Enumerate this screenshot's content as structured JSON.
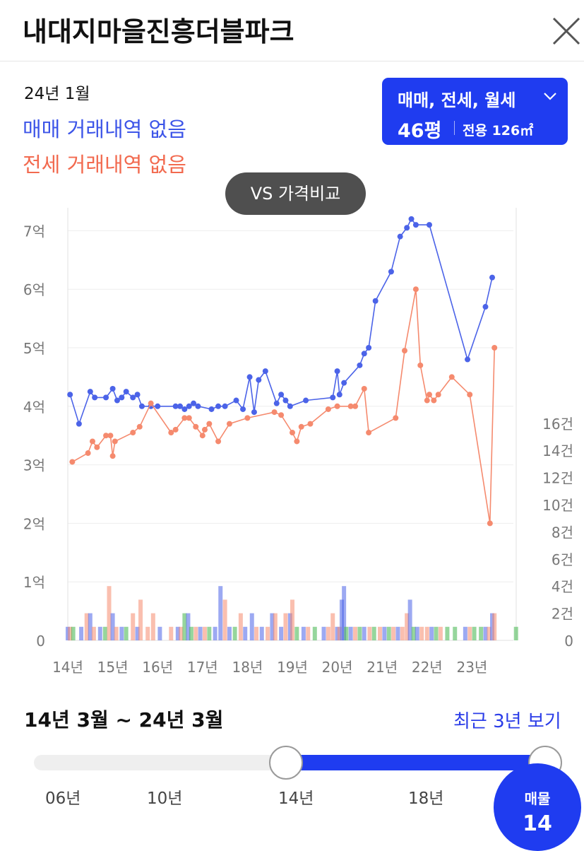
{
  "header": {
    "title": "내대지마을진흥더블파크"
  },
  "summary": {
    "period": "24년 1월",
    "sale_status": "매매 거래내역 없음",
    "rent_status": "전세 거래내역 없음"
  },
  "type_selector": {
    "types": "매매, 전세, 월세",
    "pyeong": "46평",
    "area": "전용 126㎡"
  },
  "vs_button": {
    "label": "VS 가격비교"
  },
  "colors": {
    "sale": "#4b63e8",
    "jeonse": "#f58a6e",
    "monthly": "#3fb54a",
    "accent": "#1f3cf0"
  },
  "chart_data": {
    "type": "line",
    "x_unit": "year",
    "xlim": [
      14.0,
      24.0
    ],
    "y_left": {
      "label": "억",
      "range": [
        0,
        7.5
      ],
      "ticks": [
        "0",
        "1억",
        "2억",
        "3억",
        "4억",
        "5억",
        "6억",
        "7억"
      ]
    },
    "y_right": {
      "label": "건",
      "range": [
        0,
        16
      ],
      "ticks": [
        "0",
        "2건",
        "4건",
        "6건",
        "8건",
        "10건",
        "12건",
        "14건",
        "16건"
      ]
    },
    "x_ticks": [
      "14년",
      "15년",
      "16년",
      "17년",
      "18년",
      "19년",
      "20년",
      "21년",
      "22년",
      "23년"
    ],
    "series": [
      {
        "key": "sale",
        "points": [
          [
            14.05,
            4.2
          ],
          [
            14.25,
            3.7
          ],
          [
            14.5,
            4.25
          ],
          [
            14.6,
            4.15
          ],
          [
            14.85,
            4.15
          ],
          [
            15.0,
            4.3
          ],
          [
            15.1,
            4.1
          ],
          [
            15.2,
            4.15
          ],
          [
            15.3,
            4.25
          ],
          [
            15.45,
            4.15
          ],
          [
            15.55,
            4.2
          ],
          [
            15.65,
            4.0
          ],
          [
            15.85,
            4.0
          ],
          [
            16.0,
            4.0
          ],
          [
            16.4,
            4.0
          ],
          [
            16.5,
            4.0
          ],
          [
            16.6,
            3.95
          ],
          [
            16.7,
            4.0
          ],
          [
            16.8,
            4.05
          ],
          [
            16.9,
            4.0
          ],
          [
            17.2,
            3.95
          ],
          [
            17.35,
            4.0
          ],
          [
            17.5,
            4.0
          ],
          [
            17.75,
            4.1
          ],
          [
            17.9,
            3.95
          ],
          [
            18.05,
            4.5
          ],
          [
            18.15,
            3.9
          ],
          [
            18.25,
            4.45
          ],
          [
            18.4,
            4.6
          ],
          [
            18.65,
            4.05
          ],
          [
            18.75,
            4.2
          ],
          [
            18.85,
            4.1
          ],
          [
            18.95,
            4.0
          ],
          [
            19.3,
            4.1
          ],
          [
            19.9,
            4.15
          ],
          [
            20.0,
            4.6
          ],
          [
            20.05,
            4.2
          ],
          [
            20.15,
            4.4
          ],
          [
            20.5,
            4.7
          ],
          [
            20.6,
            4.9
          ],
          [
            20.7,
            5.0
          ],
          [
            20.85,
            5.8
          ],
          [
            21.2,
            6.3
          ],
          [
            21.4,
            6.9
          ],
          [
            21.55,
            7.05
          ],
          [
            21.65,
            7.2
          ],
          [
            21.75,
            7.1
          ],
          [
            22.05,
            7.1
          ],
          [
            22.9,
            4.8
          ],
          [
            23.3,
            5.7
          ],
          [
            23.45,
            6.2
          ]
        ]
      },
      {
        "key": "jeonse",
        "points": [
          [
            14.1,
            3.05
          ],
          [
            14.45,
            3.2
          ],
          [
            14.55,
            3.4
          ],
          [
            14.65,
            3.3
          ],
          [
            14.85,
            3.5
          ],
          [
            14.95,
            3.5
          ],
          [
            15.0,
            3.15
          ],
          [
            15.05,
            3.4
          ],
          [
            15.45,
            3.55
          ],
          [
            15.6,
            3.65
          ],
          [
            15.85,
            4.05
          ],
          [
            16.3,
            3.55
          ],
          [
            16.4,
            3.6
          ],
          [
            16.6,
            3.8
          ],
          [
            16.7,
            3.8
          ],
          [
            16.85,
            3.65
          ],
          [
            17.0,
            3.5
          ],
          [
            17.05,
            3.6
          ],
          [
            17.15,
            3.7
          ],
          [
            17.35,
            3.4
          ],
          [
            17.6,
            3.7
          ],
          [
            18.0,
            3.8
          ],
          [
            18.6,
            3.9
          ],
          [
            18.75,
            3.85
          ],
          [
            19.0,
            3.55
          ],
          [
            19.1,
            3.4
          ],
          [
            19.2,
            3.65
          ],
          [
            19.4,
            3.7
          ],
          [
            19.8,
            3.95
          ],
          [
            20.0,
            4.0
          ],
          [
            20.3,
            4.0
          ],
          [
            20.4,
            4.0
          ],
          [
            20.6,
            4.3
          ],
          [
            20.7,
            3.55
          ],
          [
            21.3,
            3.8
          ],
          [
            21.5,
            4.95
          ],
          [
            21.75,
            6.0
          ],
          [
            21.85,
            4.7
          ],
          [
            22.0,
            4.1
          ],
          [
            22.05,
            4.2
          ],
          [
            22.15,
            4.1
          ],
          [
            22.25,
            4.2
          ],
          [
            22.55,
            4.5
          ],
          [
            22.95,
            4.2
          ],
          [
            23.4,
            2.0
          ],
          [
            23.5,
            5.0
          ]
        ]
      }
    ],
    "volume_unit": "건",
    "volume": [
      {
        "x": 14.0,
        "key": "sale",
        "v": 1
      },
      {
        "x": 14.05,
        "key": "jeonse",
        "v": 1
      },
      {
        "x": 14.12,
        "key": "monthly",
        "v": 1
      },
      {
        "x": 14.3,
        "key": "sale",
        "v": 1
      },
      {
        "x": 14.42,
        "key": "jeonse",
        "v": 2
      },
      {
        "x": 14.5,
        "key": "sale",
        "v": 2
      },
      {
        "x": 14.58,
        "key": "jeonse",
        "v": 1
      },
      {
        "x": 14.72,
        "key": "sale",
        "v": 1
      },
      {
        "x": 14.83,
        "key": "monthly",
        "v": 1
      },
      {
        "x": 14.92,
        "key": "jeonse",
        "v": 4
      },
      {
        "x": 15.0,
        "key": "sale",
        "v": 2
      },
      {
        "x": 15.08,
        "key": "jeonse",
        "v": 1
      },
      {
        "x": 15.2,
        "key": "sale",
        "v": 1
      },
      {
        "x": 15.3,
        "key": "monthly",
        "v": 1
      },
      {
        "x": 15.45,
        "key": "jeonse",
        "v": 2
      },
      {
        "x": 15.55,
        "key": "sale",
        "v": 1
      },
      {
        "x": 15.62,
        "key": "jeonse",
        "v": 3
      },
      {
        "x": 15.78,
        "key": "jeonse",
        "v": 1
      },
      {
        "x": 15.9,
        "key": "jeonse",
        "v": 2
      },
      {
        "x": 16.05,
        "key": "sale",
        "v": 1
      },
      {
        "x": 16.3,
        "key": "jeonse",
        "v": 1
      },
      {
        "x": 16.45,
        "key": "sale",
        "v": 1
      },
      {
        "x": 16.52,
        "key": "jeonse",
        "v": 1
      },
      {
        "x": 16.6,
        "key": "monthly",
        "v": 2
      },
      {
        "x": 16.68,
        "key": "sale",
        "v": 2
      },
      {
        "x": 16.75,
        "key": "monthly",
        "v": 1
      },
      {
        "x": 16.85,
        "key": "jeonse",
        "v": 1
      },
      {
        "x": 16.95,
        "key": "sale",
        "v": 1
      },
      {
        "x": 17.05,
        "key": "jeonse",
        "v": 1
      },
      {
        "x": 17.15,
        "key": "monthly",
        "v": 1
      },
      {
        "x": 17.28,
        "key": "sale",
        "v": 1
      },
      {
        "x": 17.4,
        "key": "sale",
        "v": 4
      },
      {
        "x": 17.5,
        "key": "jeonse",
        "v": 3
      },
      {
        "x": 17.6,
        "key": "sale",
        "v": 1
      },
      {
        "x": 17.72,
        "key": "monthly",
        "v": 1
      },
      {
        "x": 17.85,
        "key": "jeonse",
        "v": 2
      },
      {
        "x": 17.95,
        "key": "sale",
        "v": 1
      },
      {
        "x": 18.1,
        "key": "sale",
        "v": 2
      },
      {
        "x": 18.2,
        "key": "jeonse",
        "v": 1
      },
      {
        "x": 18.32,
        "key": "sale",
        "v": 1
      },
      {
        "x": 18.45,
        "key": "jeonse",
        "v": 1
      },
      {
        "x": 18.55,
        "key": "sale",
        "v": 2
      },
      {
        "x": 18.62,
        "key": "jeonse",
        "v": 2
      },
      {
        "x": 18.75,
        "key": "sale",
        "v": 1
      },
      {
        "x": 18.85,
        "key": "jeonse",
        "v": 2
      },
      {
        "x": 18.95,
        "key": "sale",
        "v": 2
      },
      {
        "x": 19.0,
        "key": "jeonse",
        "v": 3
      },
      {
        "x": 19.1,
        "key": "monthly",
        "v": 1
      },
      {
        "x": 19.25,
        "key": "sale",
        "v": 1
      },
      {
        "x": 19.35,
        "key": "jeonse",
        "v": 1
      },
      {
        "x": 19.5,
        "key": "monthly",
        "v": 1
      },
      {
        "x": 19.7,
        "key": "sale",
        "v": 1
      },
      {
        "x": 19.8,
        "key": "jeonse",
        "v": 1
      },
      {
        "x": 19.9,
        "key": "jeonse",
        "v": 2
      },
      {
        "x": 20.0,
        "key": "sale",
        "v": 1
      },
      {
        "x": 20.05,
        "key": "jeonse",
        "v": 1
      },
      {
        "x": 20.1,
        "key": "sale",
        "v": 3
      },
      {
        "x": 20.15,
        "key": "sale",
        "v": 4
      },
      {
        "x": 20.2,
        "key": "monthly",
        "v": 1
      },
      {
        "x": 20.3,
        "key": "sale",
        "v": 1
      },
      {
        "x": 20.4,
        "key": "jeonse",
        "v": 1
      },
      {
        "x": 20.5,
        "key": "monthly",
        "v": 1
      },
      {
        "x": 20.6,
        "key": "sale",
        "v": 1
      },
      {
        "x": 20.72,
        "key": "jeonse",
        "v": 1
      },
      {
        "x": 20.82,
        "key": "monthly",
        "v": 1
      },
      {
        "x": 20.95,
        "key": "jeonse",
        "v": 1
      },
      {
        "x": 21.05,
        "key": "sale",
        "v": 1
      },
      {
        "x": 21.15,
        "key": "monthly",
        "v": 1
      },
      {
        "x": 21.25,
        "key": "jeonse",
        "v": 1
      },
      {
        "x": 21.35,
        "key": "sale",
        "v": 1
      },
      {
        "x": 21.45,
        "key": "jeonse",
        "v": 1
      },
      {
        "x": 21.55,
        "key": "jeonse",
        "v": 2
      },
      {
        "x": 21.62,
        "key": "sale",
        "v": 3
      },
      {
        "x": 21.7,
        "key": "monthly",
        "v": 1
      },
      {
        "x": 21.78,
        "key": "sale",
        "v": 1
      },
      {
        "x": 21.88,
        "key": "jeonse",
        "v": 1
      },
      {
        "x": 22.0,
        "key": "jeonse",
        "v": 1
      },
      {
        "x": 22.1,
        "key": "sale",
        "v": 1
      },
      {
        "x": 22.2,
        "key": "monthly",
        "v": 1
      },
      {
        "x": 22.3,
        "key": "jeonse",
        "v": 1
      },
      {
        "x": 22.45,
        "key": "monthly",
        "v": 1
      },
      {
        "x": 22.62,
        "key": "monthly",
        "v": 1
      },
      {
        "x": 22.85,
        "key": "sale",
        "v": 1
      },
      {
        "x": 22.95,
        "key": "jeonse",
        "v": 1
      },
      {
        "x": 23.05,
        "key": "monthly",
        "v": 1
      },
      {
        "x": 23.2,
        "key": "monthly",
        "v": 1
      },
      {
        "x": 23.3,
        "key": "sale",
        "v": 1
      },
      {
        "x": 23.38,
        "key": "jeonse",
        "v": 1
      },
      {
        "x": 23.45,
        "key": "sale",
        "v": 2
      },
      {
        "x": 23.5,
        "key": "jeonse",
        "v": 2
      },
      {
        "x": 23.98,
        "key": "monthly",
        "v": 1
      }
    ]
  },
  "range": {
    "text": "14년 3월 ~ 24년 3월",
    "recent_link": "최근 3년 보기"
  },
  "slider": {
    "ticks": [
      "06년",
      "10년",
      "14년",
      "18년"
    ]
  },
  "listing": {
    "label": "매물",
    "count": "14"
  }
}
